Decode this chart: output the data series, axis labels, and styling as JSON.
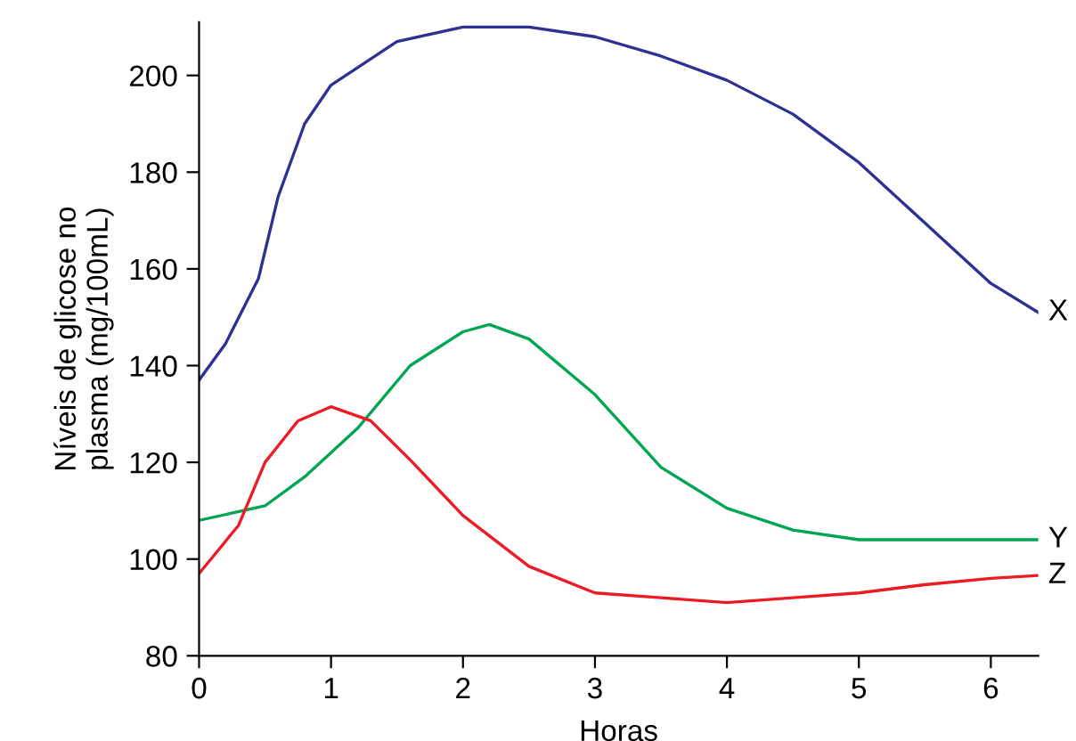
{
  "chart_data": {
    "type": "line",
    "xlabel": "Horas",
    "ylabel": "Níveis de glicose no\nplasma (mg/100mL)",
    "xlim": [
      0,
      6.36
    ],
    "ylim": [
      80,
      211
    ],
    "xticks": [
      0,
      1,
      2,
      3,
      4,
      5,
      6
    ],
    "yticks": [
      80,
      100,
      120,
      140,
      160,
      180,
      200
    ],
    "grid": false,
    "legend": false,
    "marker": "none",
    "line_style": "solid",
    "series": [
      {
        "name": "X",
        "color": "#2e3192",
        "x": [
          0,
          0.2,
          0.45,
          0.6,
          0.8,
          1,
          1.5,
          2,
          2.5,
          3,
          3.5,
          4,
          4.5,
          5,
          5.5,
          6,
          6.36
        ],
        "values": [
          137,
          144.5,
          158,
          175,
          190,
          198,
          207,
          210,
          210,
          208,
          204,
          199,
          192,
          182,
          169.5,
          157,
          151
        ]
      },
      {
        "name": "Y",
        "color": "#00a651",
        "x": [
          0,
          0.5,
          0.8,
          1.2,
          1.6,
          2,
          2.2,
          2.5,
          3,
          3.5,
          4,
          4.5,
          5,
          6,
          6.36
        ],
        "values": [
          108,
          111,
          117,
          127,
          140,
          147,
          148.5,
          145.5,
          134,
          119,
          110.5,
          106,
          104,
          104,
          104
        ]
      },
      {
        "name": "Z",
        "color": "#ed1c24",
        "x": [
          0,
          0.3,
          0.5,
          0.75,
          1,
          1.3,
          1.6,
          2,
          2.5,
          3,
          3.5,
          4,
          4.5,
          5,
          5.5,
          6,
          6.36
        ],
        "values": [
          97,
          107,
          120,
          128.6,
          131.5,
          128.6,
          120.5,
          109,
          98.5,
          93,
          92,
          91,
          92,
          93,
          94.7,
          96,
          96.6
        ]
      }
    ]
  }
}
